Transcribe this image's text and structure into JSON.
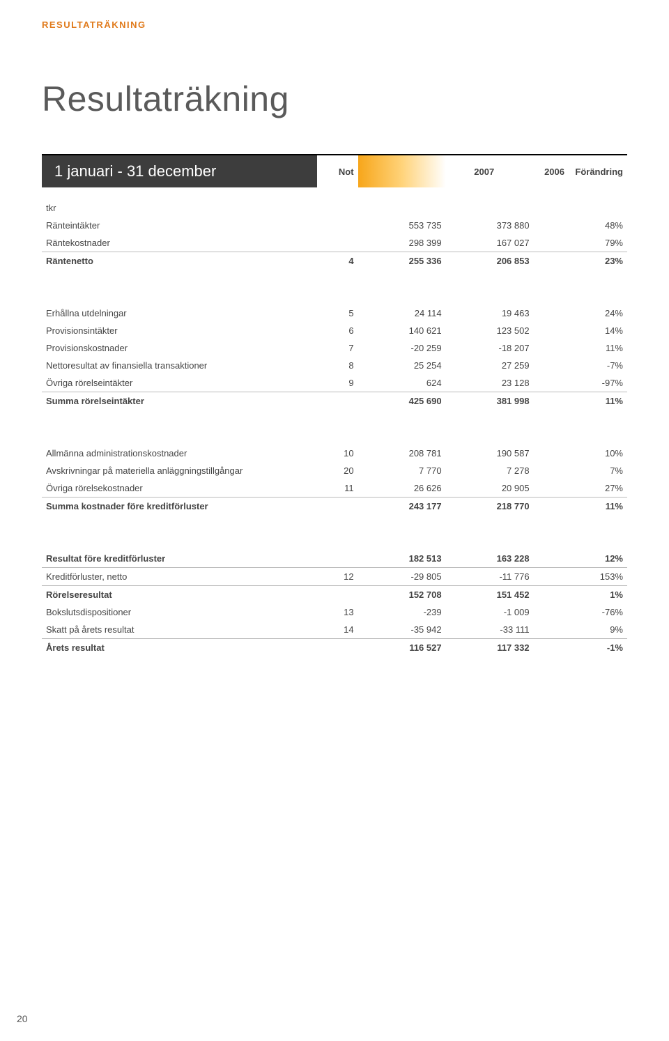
{
  "section_tag": "RESULTATRÄKNING",
  "page_title": "Resultaträkning",
  "header": {
    "period_label": "1 januari - 31 december",
    "label_bg": "#3d3d3d",
    "col_not": "Not",
    "col_2007": "2007",
    "col_2006": "2006",
    "col_change": "Förändring"
  },
  "rows": {
    "tkr": {
      "label": "tkr"
    },
    "ranteintakter": {
      "label": "Ränteintäkter",
      "not": "",
      "y07": "553 735",
      "y06": "373 880",
      "chg": "48%"
    },
    "rantekostnader": {
      "label": "Räntekostnader",
      "not": "",
      "y07": "298 399",
      "y06": "167 027",
      "chg": "79%"
    },
    "rantenetto": {
      "label": "Räntenetto",
      "not": "4",
      "y07": "255 336",
      "y06": "206 853",
      "chg": "23%"
    },
    "erhallna": {
      "label": "Erhållna utdelningar",
      "not": "5",
      "y07": "24 114",
      "y06": "19 463",
      "chg": "24%"
    },
    "provintakter": {
      "label": "Provisionsintäkter",
      "not": "6",
      "y07": "140 621",
      "y06": "123 502",
      "chg": "14%"
    },
    "provkostnader": {
      "label": "Provisionskostnader",
      "not": "7",
      "y07": "-20 259",
      "y06": "-18 207",
      "chg": "11%"
    },
    "nettoresultat": {
      "label": "Nettoresultat av finansiella transaktioner",
      "not": "8",
      "y07": "25 254",
      "y06": "27 259",
      "chg": "-7%"
    },
    "ovrigarorelse": {
      "label": "Övriga rörelseintäkter",
      "not": "9",
      "y07": "624",
      "y06": "23 128",
      "chg": "-97%"
    },
    "summaintakter": {
      "label": "Summa rörelseintäkter",
      "not": "",
      "y07": "425 690",
      "y06": "381 998",
      "chg": "11%"
    },
    "allmannaadmin": {
      "label": "Allmänna administrationskostnader",
      "not": "10",
      "y07": "208 781",
      "y06": "190 587",
      "chg": "10%"
    },
    "avskrivningar": {
      "label": "Avskrivningar på materiella anläggningstillgångar",
      "not": "20",
      "y07": "7 770",
      "y06": "7 278",
      "chg": "7%"
    },
    "ovrigakostnader": {
      "label": "Övriga rörelsekostnader",
      "not": "11",
      "y07": "26 626",
      "y06": "20 905",
      "chg": "27%"
    },
    "summakostnader": {
      "label": "Summa kostnader före kreditförluster",
      "not": "",
      "y07": "243 177",
      "y06": "218 770",
      "chg": "11%"
    },
    "resultatfore": {
      "label": "Resultat före kreditförluster",
      "not": "",
      "y07": "182 513",
      "y06": "163 228",
      "chg": "12%"
    },
    "kreditforluster": {
      "label": "Kreditförluster, netto",
      "not": "12",
      "y07": "-29 805",
      "y06": "-11 776",
      "chg": "153%"
    },
    "rorelseresultat": {
      "label": "Rörelseresultat",
      "not": "",
      "y07": "152 708",
      "y06": "151 452",
      "chg": "1%"
    },
    "bokslutsdisp": {
      "label": "Bokslutsdispositioner",
      "not": "13",
      "y07": "-239",
      "y06": "-1 009",
      "chg": "-76%"
    },
    "skatt": {
      "label": "Skatt på årets resultat",
      "not": "14",
      "y07": "-35 942",
      "y06": "-33 111",
      "chg": "9%"
    },
    "aretsresultat": {
      "label": "Årets resultat",
      "not": "",
      "y07": "116 527",
      "y06": "117 332",
      "chg": "-1%"
    }
  },
  "page_number": "20"
}
